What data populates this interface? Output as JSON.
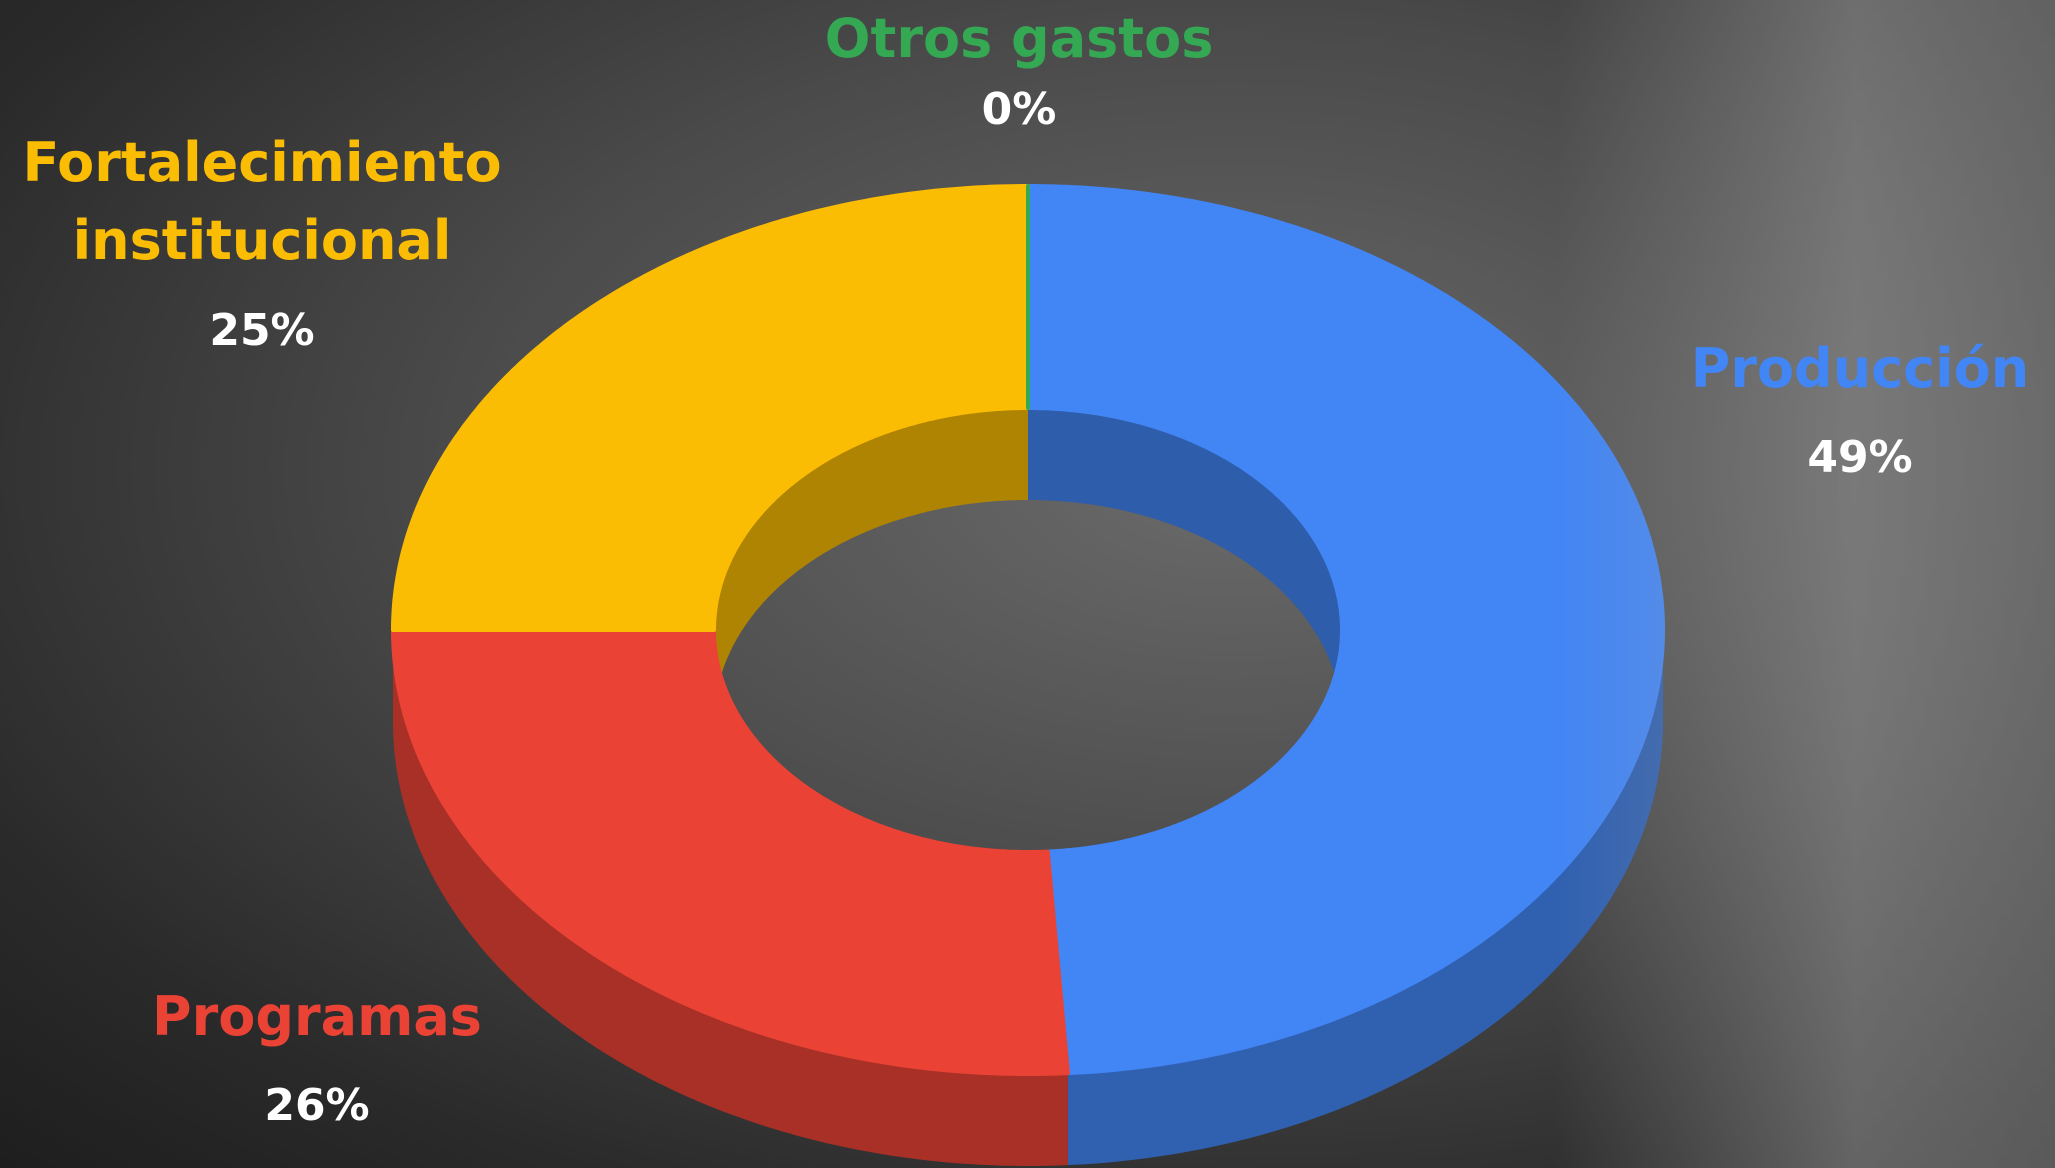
{
  "chart_data": {
    "type": "donut",
    "categories": [
      "Producción",
      "Programas",
      "Fortalecimiento institucional",
      "Otros gastos"
    ],
    "values": [
      49,
      26,
      25,
      0
    ],
    "value_labels": [
      "49%",
      "26%",
      "25%",
      "0%"
    ],
    "colors": [
      "#4285f4",
      "#ea4335",
      "#fbbc04",
      "#34a853"
    ]
  }
}
